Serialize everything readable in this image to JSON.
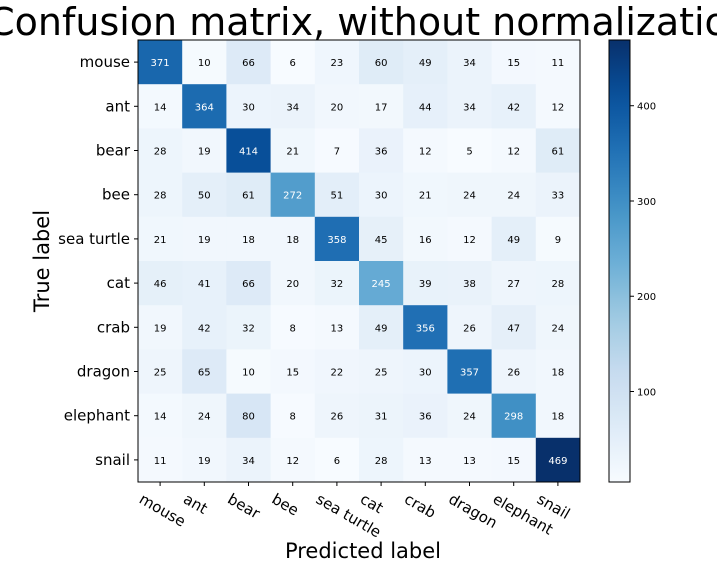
{
  "chart_data": {
    "type": "heatmap",
    "title": "Confusion matrix, without normalization",
    "xlabel": "Predicted label",
    "ylabel": "True label",
    "x_categories": [
      "mouse",
      "ant",
      "bear",
      "bee",
      "sea turtle",
      "cat",
      "crab",
      "dragon",
      "elephant",
      "snail"
    ],
    "y_categories": [
      "mouse",
      "ant",
      "bear",
      "bee",
      "sea turtle",
      "cat",
      "crab",
      "dragon",
      "elephant",
      "snail"
    ],
    "matrix": [
      [
        371,
        10,
        66,
        6,
        23,
        60,
        49,
        34,
        15,
        11
      ],
      [
        14,
        364,
        30,
        34,
        20,
        17,
        44,
        34,
        42,
        12
      ],
      [
        28,
        19,
        414,
        21,
        7,
        36,
        12,
        5,
        12,
        61
      ],
      [
        28,
        50,
        61,
        272,
        51,
        30,
        21,
        24,
        24,
        33
      ],
      [
        21,
        19,
        18,
        18,
        358,
        45,
        16,
        12,
        49,
        9
      ],
      [
        46,
        41,
        66,
        20,
        32,
        245,
        39,
        38,
        27,
        28
      ],
      [
        19,
        42,
        32,
        8,
        13,
        49,
        356,
        26,
        47,
        24
      ],
      [
        25,
        65,
        10,
        15,
        22,
        25,
        30,
        357,
        26,
        18
      ],
      [
        14,
        24,
        80,
        8,
        26,
        31,
        36,
        24,
        298,
        18
      ],
      [
        11,
        19,
        34,
        12,
        6,
        28,
        13,
        13,
        15,
        469
      ]
    ],
    "colormap": "Blues",
    "vmin": 5,
    "vmax": 469,
    "colorbar_ticks": [
      100,
      200,
      300,
      400
    ]
  }
}
